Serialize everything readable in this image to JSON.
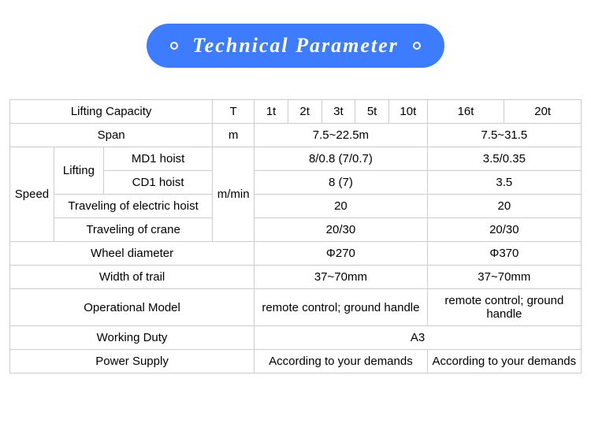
{
  "header": {
    "title": "Technical  Parameter"
  },
  "colors": {
    "pill_bg": "#3d7bff",
    "pill_text": "#ffffff",
    "table_border": "#cccccc",
    "table_text": "#000000",
    "page_bg": "#ffffff"
  },
  "table": {
    "rows": {
      "lifting_capacity": {
        "label": "Lifting Capacity",
        "unit": "T",
        "v1t": "1t",
        "v2t": "2t",
        "v3t": "3t",
        "v5t": "5t",
        "v10t": "10t",
        "v16t": "16t",
        "v20t": "20t"
      },
      "span": {
        "label": "Span",
        "unit": "m",
        "groupA": "7.5~22.5m",
        "groupB": "7.5~31.5"
      },
      "speed": {
        "label": "Speed",
        "unit": "m/min",
        "lifting": {
          "label": "Lifting",
          "md1": {
            "label": "MD1 hoist",
            "groupA": "8/0.8 (7/0.7)",
            "groupB": "3.5/0.35"
          },
          "cd1": {
            "label": "CD1 hoist",
            "groupA": "8 (7)",
            "groupB": "3.5"
          }
        },
        "travel_hoist": {
          "label": "Traveling of electric hoist",
          "groupA": "20",
          "groupB": "20"
        },
        "travel_crane": {
          "label": "Traveling of crane",
          "groupA": "20/30",
          "groupB": "20/30"
        }
      },
      "wheel_diameter": {
        "label": "Wheel diameter",
        "groupA": "Φ270",
        "groupB": "Φ370"
      },
      "width_of_trail": {
        "label": "Width of trail",
        "groupA": "37~70mm",
        "groupB": "37~70mm"
      },
      "operational_model": {
        "label": "Operational Model",
        "groupA": "remote control; ground handle",
        "groupB": "remote control; ground handle"
      },
      "working_duty": {
        "label": "Working Duty",
        "all": "A3"
      },
      "power_supply": {
        "label": "Power Supply",
        "groupA": "According to your demands",
        "groupB": "According to your demands"
      }
    }
  }
}
